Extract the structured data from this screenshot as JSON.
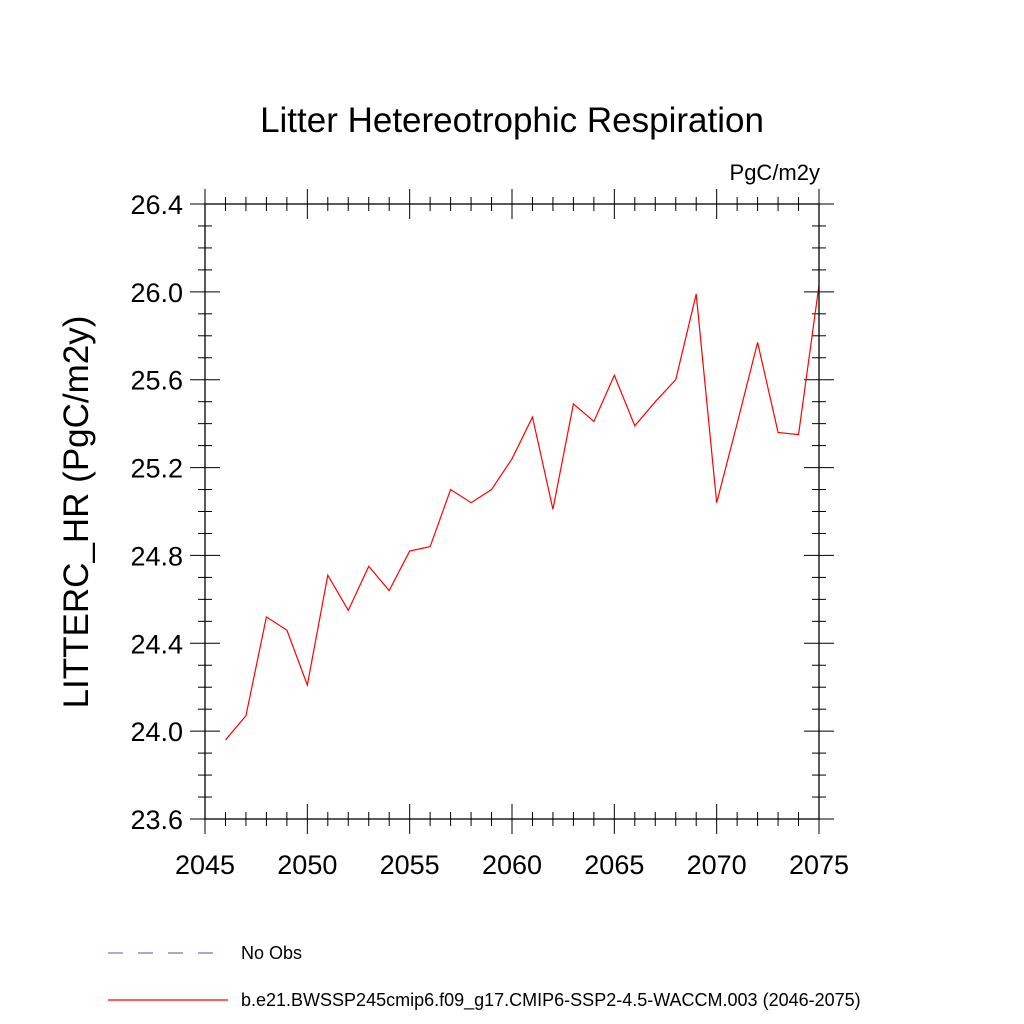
{
  "chart_data": {
    "type": "line",
    "title": "Litter Hetereotrophic Respiration",
    "units_label": "PgC/m2y",
    "ylabel": "LITTERC_HR  (PgC/m2y)",
    "xlabel": "",
    "xlim": [
      2045,
      2075
    ],
    "ylim": [
      23.6,
      26.4
    ],
    "x_ticks": [
      2045,
      2050,
      2055,
      2060,
      2065,
      2070,
      2075
    ],
    "y_ticks": [
      23.6,
      24.0,
      24.4,
      24.8,
      25.2,
      25.6,
      26.0,
      26.4
    ],
    "x_tick_labels": [
      "2045",
      "2050",
      "2055",
      "2060",
      "2065",
      "2070",
      "2075"
    ],
    "y_tick_labels": [
      "23.6",
      "24.0",
      "24.4",
      "24.8",
      "25.2",
      "25.6",
      "26.0",
      "26.4"
    ],
    "grid": false,
    "legend_position": "bottom-left, below plot",
    "series": [
      {
        "name": "b.e21.BWSSP245cmip6.f09_g17.CMIP6-SSP2-4.5-WACCM.003 (2046-2075)",
        "color": "#ff0000",
        "style": "solid",
        "x": [
          2046,
          2047,
          2048,
          2049,
          2050,
          2051,
          2052,
          2053,
          2054,
          2055,
          2056,
          2057,
          2058,
          2059,
          2060,
          2061,
          2062,
          2063,
          2064,
          2065,
          2066,
          2067,
          2068,
          2069,
          2070,
          2071,
          2072,
          2073,
          2074,
          2075
        ],
        "values": [
          23.96,
          24.07,
          24.52,
          24.46,
          24.21,
          24.71,
          24.55,
          24.75,
          24.64,
          24.82,
          24.84,
          25.1,
          25.04,
          25.1,
          25.24,
          25.43,
          25.01,
          25.49,
          25.41,
          25.62,
          25.39,
          25.5,
          25.6,
          25.99,
          25.04,
          25.4,
          25.77,
          25.36,
          25.35,
          26.03
        ]
      }
    ],
    "legend": [
      {
        "label": "No Obs",
        "color": "#7a6fbf",
        "style": "dashed"
      },
      {
        "label": "b.e21.BWSSP245cmip6.f09_g17.CMIP6-SSP2-4.5-WACCM.003 (2046-2075)",
        "color": "#ff0000",
        "style": "solid"
      }
    ]
  }
}
